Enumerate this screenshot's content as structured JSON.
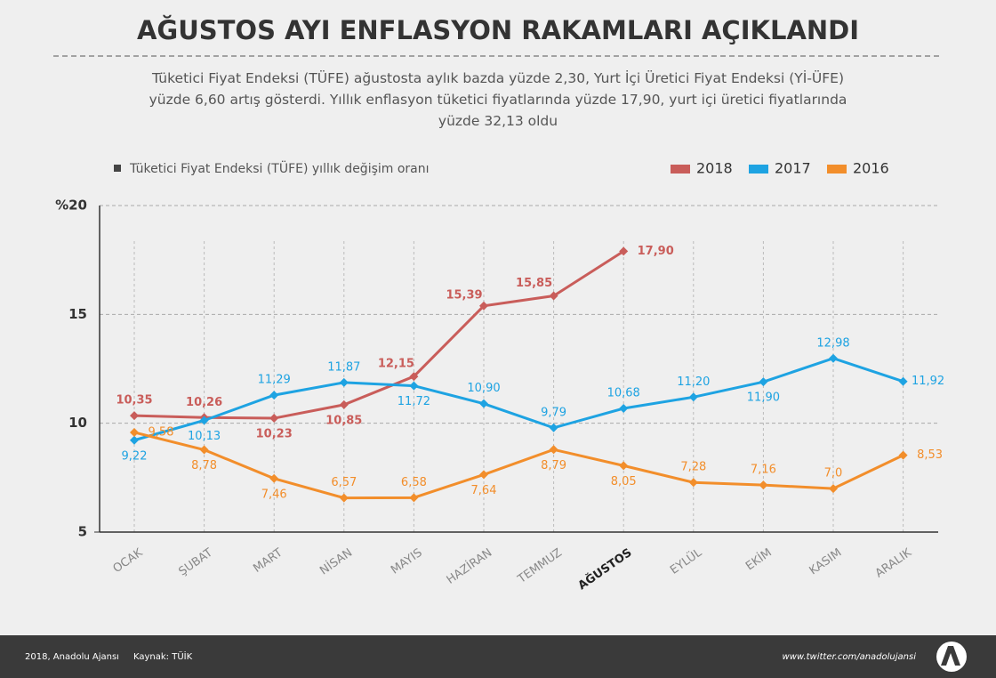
{
  "chart_data": {
    "type": "line",
    "title": "AĞUSTOS AYI ENFLASYON RAKAMLARI AÇIKLANDI",
    "subtitle": "Tüketici Fiyat Endeksi (TÜFE) ağustosta aylık bazda yüzde 2,30, Yurt İçi Üretici Fiyat Endeksi (Yİ-ÜFE) yüzde 6,60 artış gösterdi. Yıllık enflasyon tüketici fiyatlarında yüzde 17,90, yurt içi üretici fiyatlarında yüzde 32,13 oldu",
    "chart_label": "Tüketici Fiyat Endeksi (TÜFE) yıllık değişim oranı",
    "categories": [
      "OCAK",
      "ŞUBAT",
      "MART",
      "NİSAN",
      "MAYIS",
      "HAZİRAN",
      "TEMMUZ",
      "AĞUSTOS",
      "EYLÜL",
      "EKİM",
      "KASIM",
      "ARALIK"
    ],
    "highlight_category": "AĞUSTOS",
    "series": [
      {
        "name": "2018",
        "color": "#c95d5a",
        "values": [
          10.35,
          10.26,
          10.23,
          10.85,
          12.15,
          15.39,
          15.85,
          17.9,
          null,
          null,
          null,
          null
        ],
        "value_labels": [
          "10,35",
          "10,26",
          "10,23",
          "10,85",
          "12,15",
          "15,39",
          "15,85",
          "17,90",
          null,
          null,
          null,
          null
        ]
      },
      {
        "name": "2017",
        "color": "#1ea3e2",
        "values": [
          9.22,
          10.13,
          11.29,
          11.87,
          11.72,
          10.9,
          9.79,
          10.68,
          11.2,
          11.9,
          12.98,
          11.92
        ],
        "value_labels": [
          "9,22",
          "10,13",
          "11,29",
          "11,87",
          "11,72",
          "10,90",
          "9,79",
          "10,68",
          "11,20",
          "11,90",
          "12,98",
          "11,92"
        ]
      },
      {
        "name": "2016",
        "color": "#f28e2b",
        "values": [
          9.58,
          8.78,
          7.46,
          6.57,
          6.58,
          7.64,
          8.79,
          8.05,
          7.28,
          7.16,
          7.0,
          8.53
        ],
        "value_labels": [
          "9,58",
          "8,78",
          "7,46",
          "6,57",
          "6,58",
          "7,64",
          "8,79",
          "8,05",
          "7,28",
          "7,16",
          "7,0",
          "8,53"
        ]
      }
    ],
    "ylim": [
      5,
      20
    ],
    "yticks": [
      5,
      10,
      15,
      {
        "value": 20,
        "label": "%20"
      }
    ],
    "grid": true,
    "footer": {
      "left": "2018, Anadolu Ajansı",
      "source": "Kaynak: TÜİK",
      "right": "www.twitter.com/anadolujansi"
    }
  }
}
